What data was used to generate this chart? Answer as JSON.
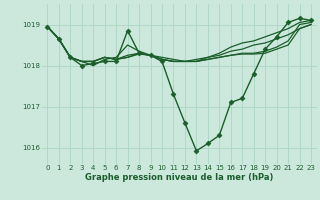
{
  "title": "Graphe pression niveau de la mer (hPa)",
  "bg_color": "#cce8dd",
  "plot_bg_color": "#cce8dd",
  "line_color": "#1a5e2a",
  "grid_color": "#b0d8c8",
  "text_color": "#1a5e2a",
  "xlim": [
    -0.5,
    23.5
  ],
  "ylim": [
    1015.6,
    1019.5
  ],
  "yticks": [
    1016,
    1017,
    1018,
    1019
  ],
  "xticks": [
    0,
    1,
    2,
    3,
    4,
    5,
    6,
    7,
    8,
    9,
    10,
    11,
    12,
    13,
    14,
    15,
    16,
    17,
    18,
    19,
    20,
    21,
    22,
    23
  ],
  "series": [
    {
      "x": [
        0,
        1,
        2,
        3,
        4,
        5,
        6,
        7,
        8,
        9,
        10,
        11,
        12,
        13,
        14,
        15,
        16,
        17,
        18,
        19,
        20,
        21,
        22,
        23
      ],
      "y": [
        1018.95,
        1018.65,
        1018.2,
        1018.0,
        1018.05,
        1018.1,
        1018.1,
        1018.85,
        1018.3,
        1018.25,
        1018.1,
        1017.3,
        1016.6,
        1015.92,
        1016.1,
        1016.3,
        1017.1,
        1017.2,
        1017.8,
        1018.4,
        1018.7,
        1019.05,
        1019.15,
        1019.1
      ],
      "marker": "D",
      "markersize": 2.5,
      "lw": 1.0
    },
    {
      "x": [
        0,
        1,
        2,
        3,
        4,
        5,
        6,
        7,
        8,
        9,
        10,
        11,
        12,
        13,
        14,
        15,
        16,
        17,
        18,
        19,
        20,
        21,
        22,
        23
      ],
      "y": [
        1018.95,
        1018.65,
        1018.2,
        1018.1,
        1018.0,
        1018.15,
        1018.2,
        1018.5,
        1018.35,
        1018.25,
        1018.2,
        1018.15,
        1018.1,
        1018.15,
        1018.2,
        1018.3,
        1018.45,
        1018.55,
        1018.6,
        1018.7,
        1018.8,
        1018.9,
        1019.05,
        1019.1
      ],
      "marker": null,
      "lw": 0.9
    },
    {
      "x": [
        0,
        1,
        2,
        3,
        4,
        5,
        6,
        7,
        8,
        9,
        10,
        11,
        12,
        13,
        14,
        15,
        16,
        17,
        18,
        19,
        20,
        21,
        22,
        23
      ],
      "y": [
        1018.95,
        1018.65,
        1018.2,
        1018.1,
        1018.1,
        1018.2,
        1018.15,
        1018.2,
        1018.3,
        1018.25,
        1018.15,
        1018.1,
        1018.1,
        1018.1,
        1018.2,
        1018.25,
        1018.35,
        1018.4,
        1018.5,
        1018.55,
        1018.65,
        1018.75,
        1018.9,
        1019.0
      ],
      "marker": null,
      "lw": 0.9
    },
    {
      "x": [
        0,
        1,
        2,
        3,
        4,
        5,
        6,
        7,
        8,
        9,
        10,
        11,
        12,
        13,
        14,
        15,
        16,
        17,
        18,
        19,
        20,
        21,
        22,
        23
      ],
      "y": [
        1018.95,
        1018.65,
        1018.2,
        1018.1,
        1018.1,
        1018.2,
        1018.15,
        1018.25,
        1018.3,
        1018.25,
        1018.15,
        1018.1,
        1018.1,
        1018.1,
        1018.15,
        1018.2,
        1018.25,
        1018.3,
        1018.3,
        1018.35,
        1018.45,
        1018.6,
        1019.0,
        1019.05
      ],
      "marker": null,
      "lw": 0.9
    },
    {
      "x": [
        0,
        1,
        2,
        3,
        4,
        5,
        6,
        7,
        8,
        9,
        10,
        11,
        12,
        13,
        14,
        15,
        16,
        17,
        18,
        19,
        20,
        21,
        22,
        23
      ],
      "y": [
        1018.95,
        1018.65,
        1018.2,
        1018.1,
        1018.1,
        1018.2,
        1018.15,
        1018.2,
        1018.28,
        1018.25,
        1018.15,
        1018.1,
        1018.1,
        1018.1,
        1018.15,
        1018.2,
        1018.25,
        1018.28,
        1018.28,
        1018.3,
        1018.4,
        1018.5,
        1018.9,
        1019.0
      ],
      "marker": null,
      "lw": 0.9
    }
  ],
  "title_fontsize": 6.0,
  "tick_fontsize": 5.0
}
